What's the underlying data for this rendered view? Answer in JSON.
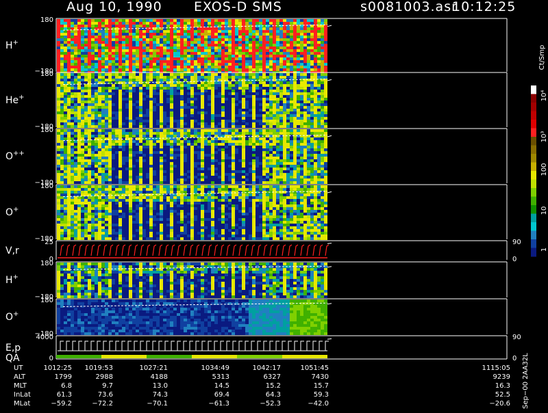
{
  "header": {
    "date": "Aug 10, 1990",
    "instrument": "EXOS-D SMS",
    "file": "s0081003.asr",
    "time": "10:12:25"
  },
  "chart_data": {
    "type": "heatmap",
    "panels": [
      {
        "id": "p1",
        "label": "H",
        "sup": "+",
        "ytop": "180",
        "ybot": "−180",
        "style": "hot"
      },
      {
        "id": "p2",
        "label": "He",
        "sup": "+",
        "ytop": "180",
        "ybot": "−180",
        "style": "mid"
      },
      {
        "id": "p3",
        "label": "O",
        "sup": "++",
        "ytop": "180",
        "ybot": "−180",
        "style": "mid"
      },
      {
        "id": "p4",
        "label": "O",
        "sup": "+",
        "ytop": "180",
        "ybot": "−180",
        "style": "mid"
      },
      {
        "id": "p5",
        "label": "V,r",
        "sup": "",
        "ytop": "25",
        "ybot": "0",
        "right_top": "90",
        "right_bot": "0",
        "style": "line"
      },
      {
        "id": "p6",
        "label": "H",
        "sup": "+",
        "ytop": "180",
        "ybot": "−180",
        "style": "low"
      },
      {
        "id": "p7",
        "label": "O",
        "sup": "+",
        "ytop": "180",
        "ybot": "−180",
        "style": "blue"
      },
      {
        "id": "p8",
        "label": "E,p",
        "label2": "QA",
        "ytop": "4000",
        "ybot": "0",
        "right_top": "90",
        "right_bot": "0",
        "style": "step"
      }
    ],
    "colorbar": {
      "unit": "Ct/Smp",
      "labels": [
        "10⁴",
        "10³",
        "100",
        "10",
        "1"
      ],
      "colors": [
        "#ffffff",
        "#8b0000",
        "#a50000",
        "#c00000",
        "#e00000",
        "#ff2020",
        "#6b4f00",
        "#8a6d00",
        "#a08800",
        "#c8b000",
        "#e8e800",
        "#c0e000",
        "#80d000",
        "#40b000",
        "#109000",
        "#00a0a0",
        "#00c8d0",
        "#2080c0",
        "#1040a0",
        "#0a1a80"
      ]
    },
    "footer": {
      "rows": [
        {
          "key": "UT",
          "values": [
            "1012:25",
            "1019:53",
            "1027:21",
            "1034:49",
            "1042:17",
            "1051:45",
            "1115:05"
          ]
        },
        {
          "key": "ALT",
          "values": [
            "1799",
            "2988",
            "4188",
            "5313",
            "6327",
            "7430",
            "9239"
          ]
        },
        {
          "key": "MLT",
          "values": [
            "6.8",
            "9.7",
            "13.0",
            "14.5",
            "15.2",
            "15.7",
            "16.3"
          ]
        },
        {
          "key": "InLat",
          "values": [
            "61.3",
            "73.6",
            "74.3",
            "69.4",
            "64.3",
            "59.3",
            "52.5"
          ]
        },
        {
          "key": "MLat",
          "values": [
            "−59.2",
            "−72.2",
            "−70.1",
            "−61.3",
            "−52.3",
            "−42.0",
            "−20.6"
          ]
        }
      ],
      "side_note": "Sep−00 2AA32L"
    }
  }
}
